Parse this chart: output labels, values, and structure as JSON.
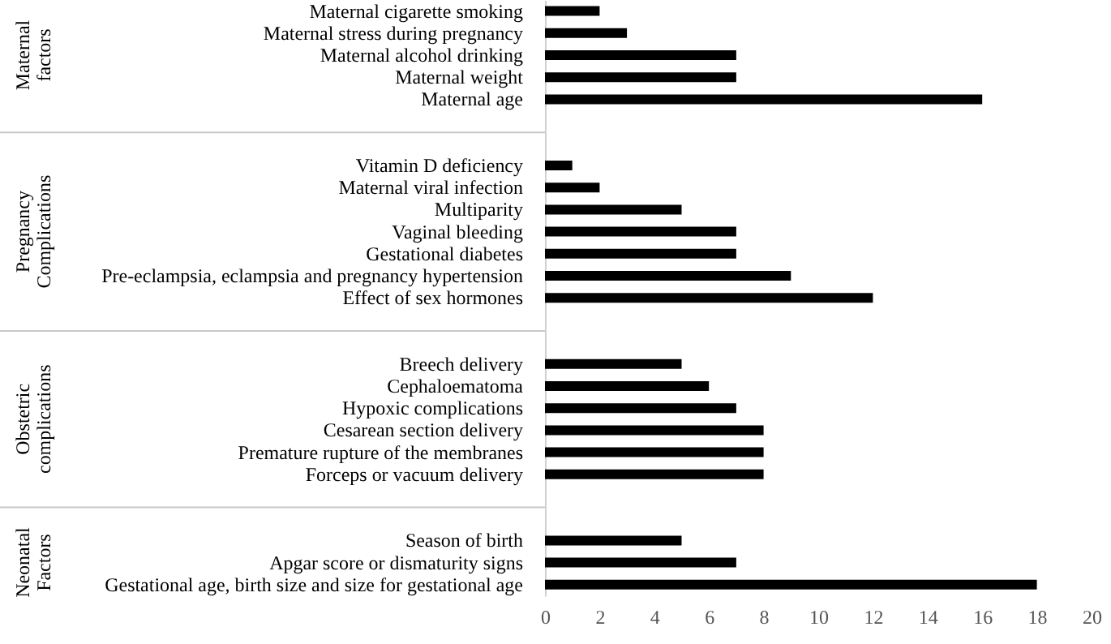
{
  "chart_data": {
    "type": "bar",
    "orientation": "horizontal",
    "categories": [
      "Maternal cigarette smoking",
      "Maternal stress during pregnancy",
      "Maternal alcohol drinking",
      "Maternal weight",
      "Maternal age",
      null,
      null,
      "Vitamin D deficiency",
      "Maternal viral infection",
      "Multiparity",
      "Vaginal bleeding",
      "Gestational diabetes",
      "Pre-eclampsia, eclampsia and pregnancy hypertension",
      "Effect of sex hormones",
      null,
      null,
      "Breech delivery",
      "Cephaloematoma",
      "Hypoxic complications",
      "Cesarean section delivery",
      "Premature rupture of the membranes",
      "Forceps or vacuum delivery",
      null,
      null,
      "Season of birth",
      "Apgar score or dismaturity signs",
      "Gestational age, birth size and size for gestational age"
    ],
    "values": [
      2,
      3,
      7,
      7,
      16,
      null,
      null,
      1,
      2,
      5,
      7,
      7,
      9,
      12,
      null,
      null,
      5,
      6,
      7,
      8,
      8,
      8,
      null,
      null,
      5,
      7,
      18
    ],
    "color": "#000000",
    "xlim": [
      0,
      20
    ],
    "xticks": [
      0,
      2,
      4,
      6,
      8,
      10,
      12,
      14,
      16,
      18,
      20
    ],
    "grid": false,
    "annotations": [
      "Maternal factors",
      "Pregnancy Complications",
      "Obstetric complications",
      "Neonatal Factors"
    ]
  }
}
